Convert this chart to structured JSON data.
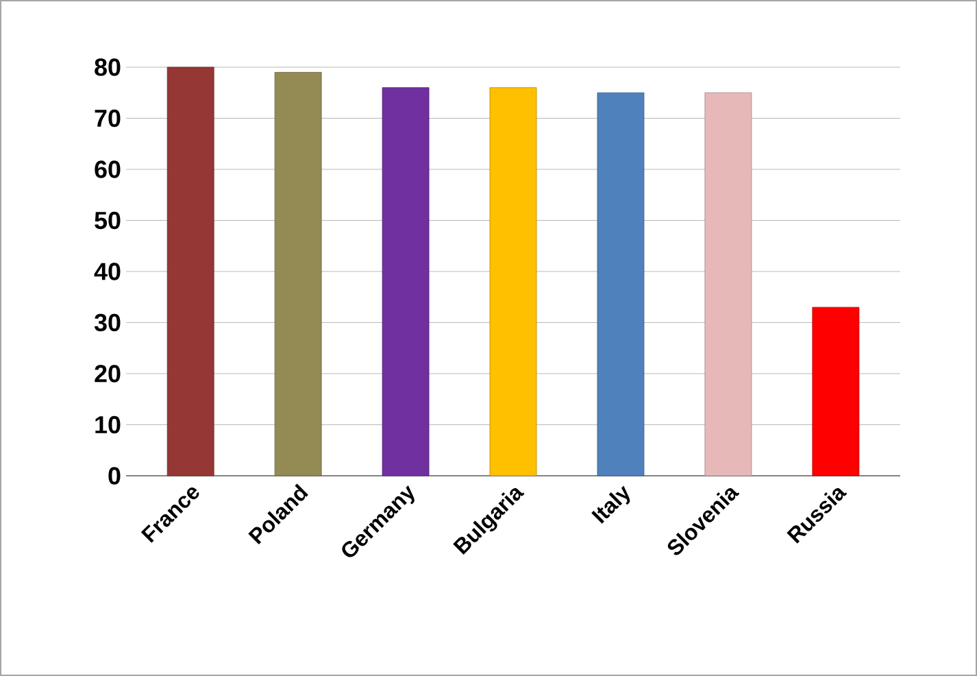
{
  "chart_data": {
    "type": "bar",
    "categories": [
      "France",
      "Poland",
      "Germany",
      "Bulgaria",
      "Italy",
      "Slovenia",
      "Russia"
    ],
    "values": [
      80,
      79,
      76,
      76,
      75,
      75,
      33
    ],
    "colors": [
      "#953735",
      "#948a54",
      "#7030a0",
      "#ffc000",
      "#4f81bd",
      "#e6b9b8",
      "#ff0000"
    ],
    "ylim": [
      0,
      80
    ],
    "yticks": [
      0,
      10,
      20,
      30,
      40,
      50,
      60,
      70,
      80
    ],
    "grid": "y"
  }
}
